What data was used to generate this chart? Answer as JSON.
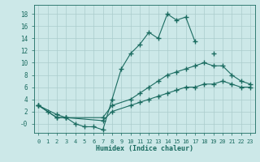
{
  "bg_color": "#cce8e8",
  "grid_color": "#aacccc",
  "line_color": "#1a6b60",
  "marker": "+",
  "marker_size": 4,
  "marker_lw": 1.0,
  "series": [
    {
      "x": [
        0,
        1,
        2,
        3,
        4,
        5,
        6,
        7,
        8,
        9,
        10,
        11,
        12,
        13,
        14,
        15,
        16,
        17,
        18,
        19,
        20,
        21,
        22,
        23
      ],
      "y": [
        3,
        2,
        1,
        1,
        0,
        -0.5,
        -0.5,
        -1,
        4,
        9,
        11.5,
        13,
        15,
        14,
        18,
        17,
        17.5,
        13.5,
        null,
        11.5,
        null,
        null,
        null,
        null
      ]
    },
    {
      "x": [
        0,
        2,
        3,
        7,
        8,
        10,
        11,
        12,
        13,
        14,
        15,
        16,
        17,
        18,
        19,
        20,
        21,
        22,
        23
      ],
      "y": [
        3,
        1,
        1,
        1,
        3,
        4,
        5,
        6,
        7,
        8,
        8.5,
        9,
        9.5,
        10,
        9.5,
        9.5,
        8,
        7,
        6.5
      ]
    },
    {
      "x": [
        0,
        2,
        3,
        7,
        8,
        10,
        11,
        12,
        13,
        14,
        15,
        16,
        17,
        18,
        19,
        20,
        21,
        22,
        23
      ],
      "y": [
        3,
        1.5,
        1,
        0.5,
        2,
        3,
        3.5,
        4,
        4.5,
        5,
        5.5,
        6,
        6,
        6.5,
        6.5,
        7,
        6.5,
        6,
        6
      ]
    }
  ],
  "xlim": [
    -0.5,
    23.5
  ],
  "ylim": [
    -1.5,
    19.5
  ],
  "ytick_vals": [
    0,
    2,
    4,
    6,
    8,
    10,
    12,
    14,
    16,
    18
  ],
  "ytick_labels": [
    "-0",
    "2",
    "4",
    "6",
    "8",
    "10",
    "12",
    "14",
    "16",
    "18"
  ],
  "xticks": [
    0,
    1,
    2,
    3,
    4,
    5,
    6,
    7,
    8,
    9,
    10,
    11,
    12,
    13,
    14,
    15,
    16,
    17,
    18,
    19,
    20,
    21,
    22,
    23
  ],
  "xlabel": "Humidex (Indice chaleur)"
}
